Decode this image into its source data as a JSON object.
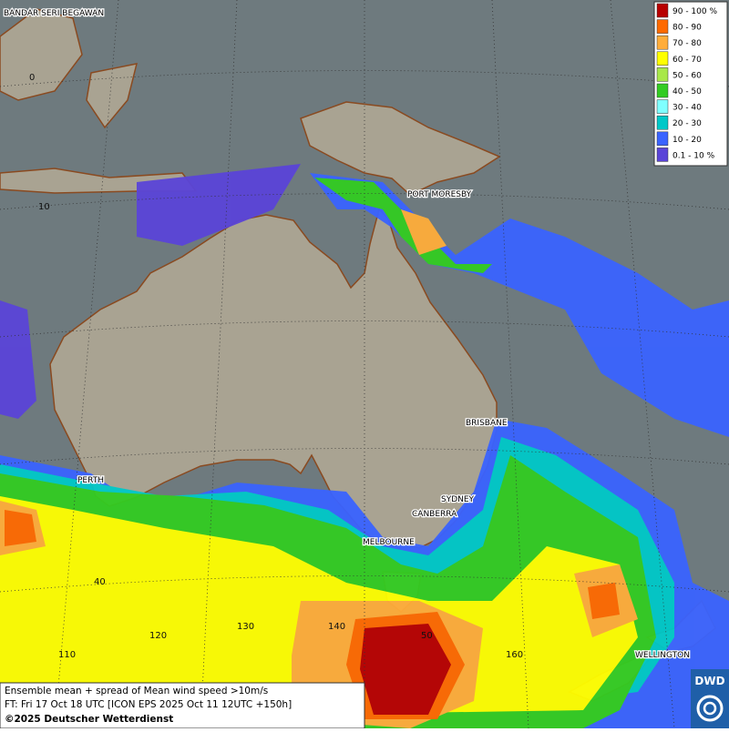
{
  "legend": {
    "items": [
      {
        "label": "90 - 100 %",
        "color": "#b80000"
      },
      {
        "label": "80 - 90",
        "color": "#ff6a00"
      },
      {
        "label": "70 - 80",
        "color": "#ffad3a"
      },
      {
        "label": "60 - 70",
        "color": "#ffff00"
      },
      {
        "label": "50 - 60",
        "color": "#a8e84a"
      },
      {
        "label": "40 - 50",
        "color": "#33cc22"
      },
      {
        "label": "30 - 40",
        "color": "#80ffff"
      },
      {
        "label": "20 - 30",
        "color": "#00c8c8"
      },
      {
        "label": "10 - 20",
        "color": "#3a63ff"
      },
      {
        "label": "0.1 - 10 %",
        "color": "#5a44d8"
      }
    ]
  },
  "cities": [
    "BANDAR SERI BEGAWAN",
    "PORT MORESBY",
    "BRISBANE",
    "PERTH",
    "SYDNEY",
    "CANBERRA",
    "MELBOURNE",
    "WELLINGTON"
  ],
  "grid_labels": [
    "0",
    "10",
    "40",
    "110",
    "120",
    "130",
    "140",
    "50",
    "160"
  ],
  "caption": {
    "line1": "Ensemble mean + spread of Mean wind speed >10m/s",
    "line2": "FT: Fri 17 Oct 18 UTC [ICON EPS 2025 Oct 11 12UTC +150h]",
    "line3": "©2025 Deutscher Wetterdienst"
  },
  "logo": "DWD"
}
